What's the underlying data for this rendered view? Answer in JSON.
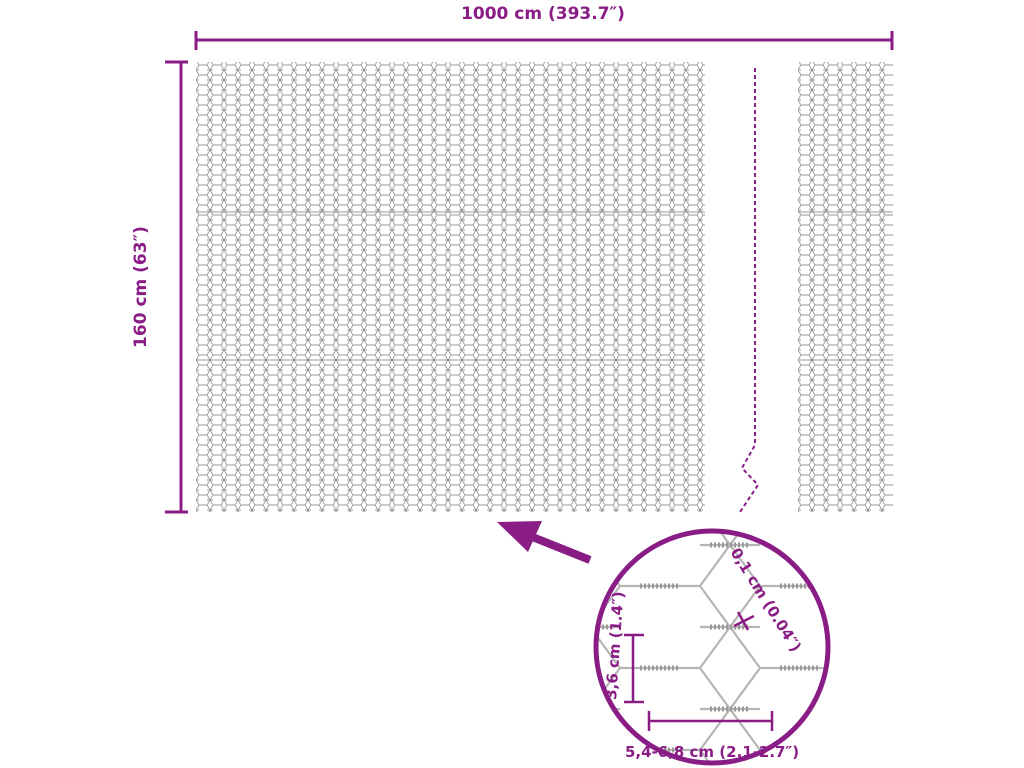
{
  "dimensions": {
    "width_label": "1000 cm (393.7″)",
    "height_label": "160 cm (63″)",
    "wire_label": "0,1 cm (0.04″)",
    "mesh_height_label": "3,6 cm (1.4″)",
    "mesh_width_label": "5,4-6,8 cm (2.1-2.7″)"
  },
  "colors": {
    "accent": "#8a1c86",
    "mesh": "#9a9a9a"
  },
  "icons": {
    "arrow": "arrow-pointing-to-mesh",
    "detail": "magnified-detail-circle"
  }
}
